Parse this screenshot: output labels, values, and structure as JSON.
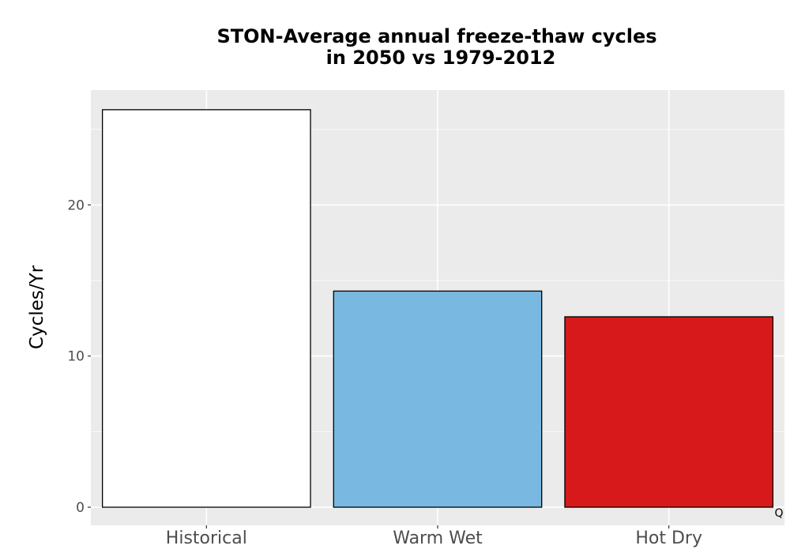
{
  "chart_data": {
    "type": "bar",
    "title_lines": [
      "STON-Average annual freeze-thaw cycles",
      "in 2050 vs 1979-2012"
    ],
    "xlabel": "",
    "ylabel": "Cycles/Yr",
    "categories": [
      "Historical",
      "Warm Wet",
      "Hot Dry"
    ],
    "values": [
      26.3,
      14.3,
      12.6
    ],
    "colors": [
      "#ffffff",
      "#79b8e0",
      "#d7191c"
    ],
    "bar_outline": "#000000",
    "panel_background": "#ebebeb",
    "gridline_color": "#ffffff",
    "ylim": [
      -1.2,
      27.6
    ],
    "yticks": [
      0,
      10,
      20
    ],
    "ytick_labels": [
      "0",
      "10",
      "20"
    ],
    "grid": true,
    "legend": "none",
    "corner_mark": "Q"
  }
}
